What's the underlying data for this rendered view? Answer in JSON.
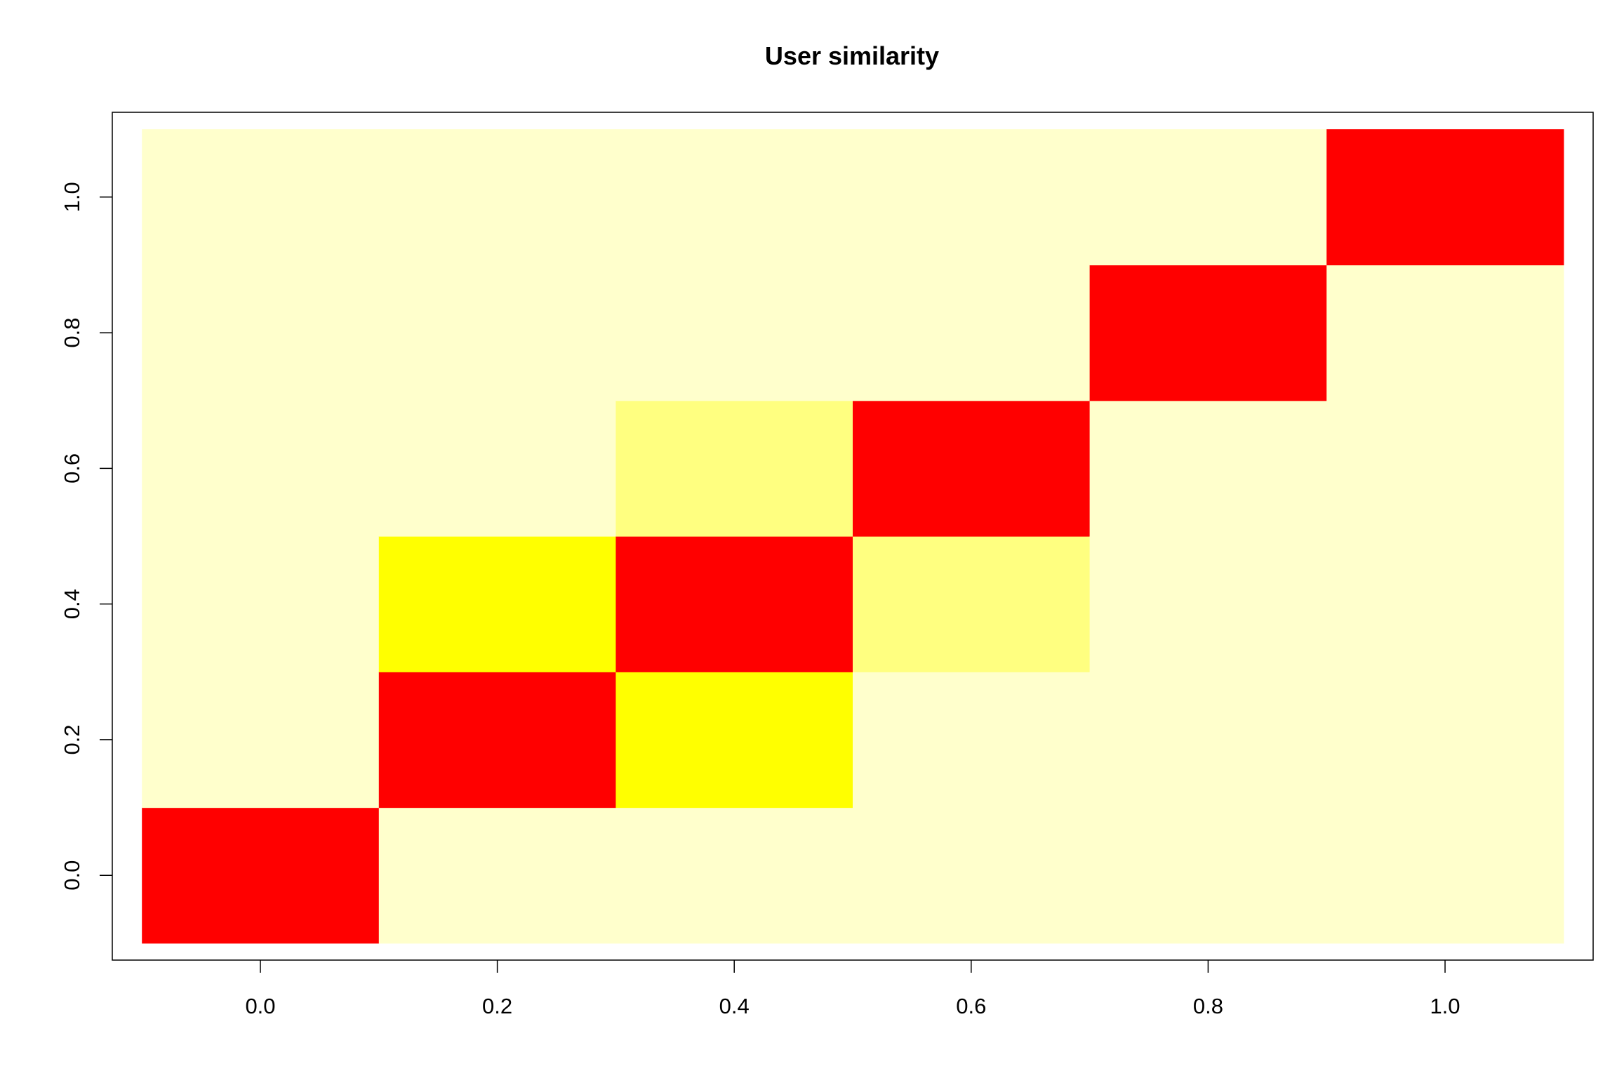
{
  "chart_data": {
    "type": "heatmap",
    "title": "User similarity",
    "xlabel": "",
    "ylabel": "",
    "x": [
      0.0,
      0.2,
      0.4,
      0.6,
      0.8,
      1.0
    ],
    "y": [
      0.0,
      0.2,
      0.4,
      0.6,
      0.8,
      1.0
    ],
    "xlim": [
      -0.125,
      1.125
    ],
    "ylim": [
      -0.125,
      1.125
    ],
    "x_ticks": [
      "0.0",
      "0.2",
      "0.4",
      "0.6",
      "0.8",
      "1.0"
    ],
    "y_ticks": [
      "0.0",
      "0.2",
      "0.4",
      "0.6",
      "0.8",
      "1.0"
    ],
    "color_scale": [
      "#ffffcc",
      "#ffff80",
      "#ffff00",
      "#ff0000"
    ],
    "levels": [
      [
        3,
        0,
        0,
        0,
        0,
        0
      ],
      [
        0,
        3,
        2,
        0,
        0,
        0
      ],
      [
        0,
        2,
        3,
        1,
        0,
        0
      ],
      [
        0,
        0,
        1,
        3,
        0,
        0
      ],
      [
        0,
        0,
        0,
        0,
        3,
        0
      ],
      [
        0,
        0,
        0,
        0,
        0,
        3
      ]
    ],
    "levels_layout": "levels[row][col] where row is the x-index and col is the y-index (0 = palest, 3 = red)",
    "grid": false,
    "legend": "none"
  }
}
